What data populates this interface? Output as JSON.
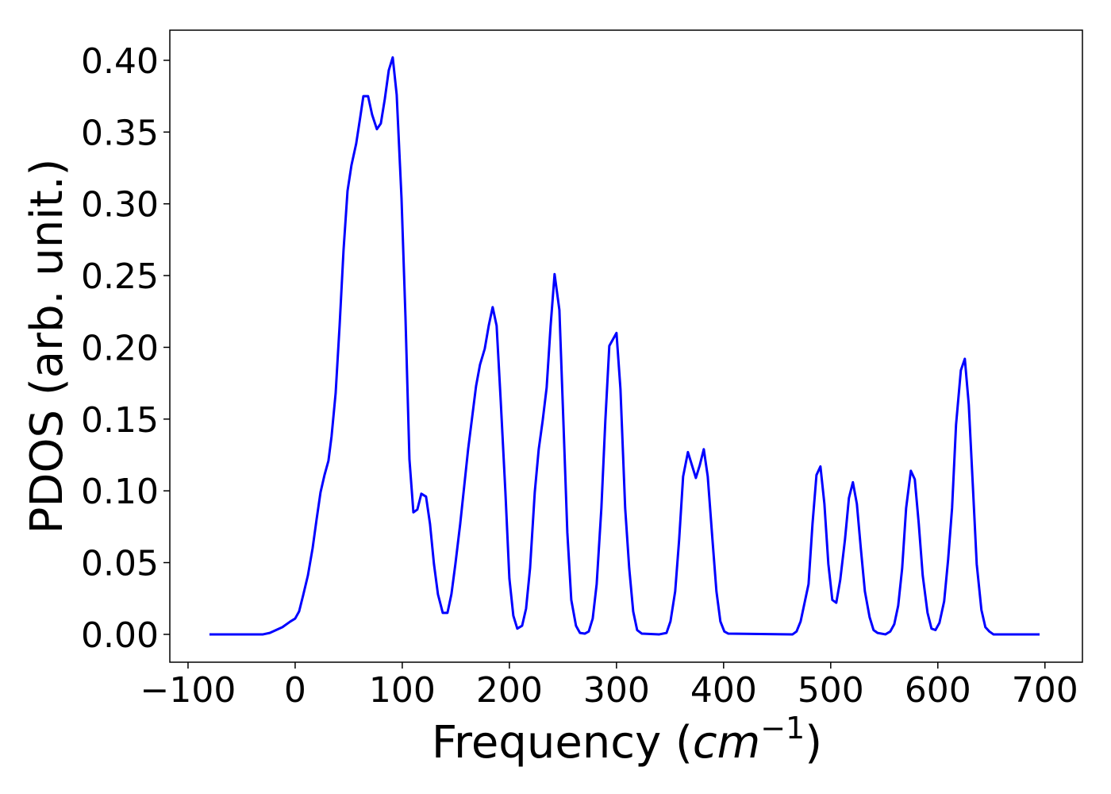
{
  "chart_data": {
    "type": "line",
    "xlabel": [
      "Frequency (",
      "cm",
      "−1",
      ")"
    ],
    "ylabel": "PDOS (arb. unit.)",
    "color": "#0000ff",
    "xlim": [
      -117,
      735
    ],
    "ylim": [
      -0.0194,
      0.421
    ],
    "xticks": [
      {
        "value": -100,
        "label": "−100"
      },
      0,
      100,
      200,
      300,
      400,
      500,
      600,
      700
    ],
    "yticks": [
      {
        "value": 0,
        "label": "0.00"
      },
      {
        "value": 0.05,
        "label": "0.05"
      },
      {
        "value": 0.1,
        "label": "0.10"
      },
      {
        "value": 0.15,
        "label": "0.15"
      },
      {
        "value": 0.2,
        "label": "0.20"
      },
      {
        "value": 0.25,
        "label": "0.25"
      },
      {
        "value": 0.3,
        "label": "0.30"
      },
      {
        "value": 0.35,
        "label": "0.35"
      },
      {
        "value": 0.4,
        "label": "0.40"
      }
    ],
    "x": [
      -80,
      -30,
      -23.7,
      -11.9,
      -4.4,
      0,
      3.7,
      7.4,
      11.9,
      16.3,
      20,
      23.7,
      27.4,
      31.1,
      34,
      37.8,
      41.5,
      45.2,
      48.9,
      52.6,
      57,
      60.7,
      63.7,
      68.1,
      71.9,
      76.3,
      80,
      83.7,
      87.4,
      91.1,
      94.8,
      99.3,
      103,
      106.7,
      110.4,
      114.1,
      117.8,
      122.2,
      125.9,
      129.6,
      133.3,
      137.8,
      142.2,
      145.9,
      149.6,
      154.1,
      161.5,
      168.9,
      172.6,
      177,
      180.7,
      184.4,
      188.1,
      191.9,
      196.3,
      200,
      203.7,
      207.4,
      211.9,
      215.6,
      219.3,
      223.7,
      227.4,
      231.1,
      234.8,
      238.5,
      242.2,
      246.7,
      250.4,
      254.1,
      257.8,
      262.2,
      265.9,
      270.4,
      274.1,
      277.8,
      281.5,
      285.9,
      289.6,
      293.3,
      300,
      303.7,
      308.1,
      311.9,
      315.6,
      319.3,
      323.7,
      340,
      346.7,
      350.4,
      354.8,
      358.5,
      362.2,
      366.7,
      370.4,
      374.1,
      377.8,
      381.5,
      385.2,
      389.6,
      393.3,
      397,
      400.7,
      404.4,
      464.4,
      468.1,
      471.9,
      475.6,
      479.3,
      483,
      486.7,
      490.4,
      494.1,
      497.8,
      501.5,
      505.2,
      508.9,
      513.3,
      517,
      520.7,
      524.4,
      528.1,
      531.9,
      536.3,
      540,
      543.7,
      551.1,
      555.6,
      559.3,
      563,
      566.7,
      570.4,
      574.8,
      578.5,
      582.2,
      585.9,
      590.4,
      594.1,
      597.8,
      601.5,
      605.9,
      609.6,
      613.3,
      617,
      621.5,
      625.2,
      628.9,
      632.6,
      636.3,
      640.7,
      644.4,
      648.1,
      651.9,
      695
    ],
    "values": [
      0,
      0,
      0.001,
      0.005,
      0.009,
      0.011,
      0.016,
      0.027,
      0.041,
      0.06,
      0.08,
      0.099,
      0.111,
      0.121,
      0.138,
      0.168,
      0.215,
      0.268,
      0.309,
      0.327,
      0.342,
      0.36,
      0.375,
      0.375,
      0.362,
      0.352,
      0.356,
      0.373,
      0.393,
      0.402,
      0.376,
      0.304,
      0.221,
      0.122,
      0.085,
      0.087,
      0.098,
      0.096,
      0.077,
      0.049,
      0.028,
      0.015,
      0.015,
      0.028,
      0.049,
      0.077,
      0.129,
      0.173,
      0.188,
      0.199,
      0.215,
      0.228,
      0.215,
      0.163,
      0.099,
      0.039,
      0.013,
      0.004,
      0.006,
      0.018,
      0.046,
      0.099,
      0.129,
      0.149,
      0.172,
      0.215,
      0.251,
      0.226,
      0.149,
      0.071,
      0.024,
      0.006,
      0.001,
      0.0005,
      0.002,
      0.011,
      0.035,
      0.088,
      0.149,
      0.201,
      0.21,
      0.171,
      0.088,
      0.046,
      0.016,
      0.003,
      0.0005,
      0,
      0.001,
      0.009,
      0.03,
      0.066,
      0.11,
      0.127,
      0.118,
      0.109,
      0.118,
      0.129,
      0.11,
      0.066,
      0.03,
      0.009,
      0.002,
      0.0005,
      0,
      0.002,
      0.009,
      0.022,
      0.035,
      0.077,
      0.111,
      0.117,
      0.091,
      0.049,
      0.024,
      0.022,
      0.038,
      0.066,
      0.095,
      0.106,
      0.091,
      0.06,
      0.03,
      0.012,
      0.003,
      0.001,
      0,
      0.002,
      0.007,
      0.02,
      0.046,
      0.088,
      0.114,
      0.108,
      0.077,
      0.041,
      0.015,
      0.004,
      0.003,
      0.008,
      0.023,
      0.052,
      0.088,
      0.146,
      0.184,
      0.192,
      0.16,
      0.105,
      0.049,
      0.017,
      0.005,
      0.002,
      0,
      0
    ]
  }
}
